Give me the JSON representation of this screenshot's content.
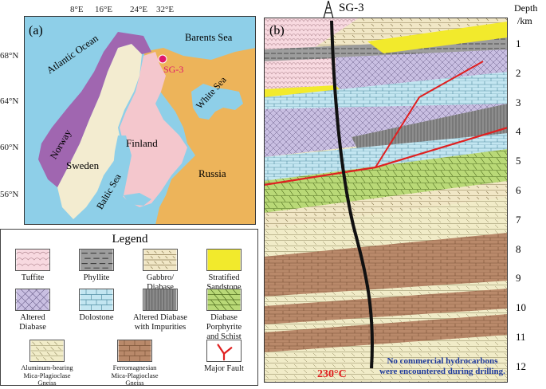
{
  "map": {
    "panel_label": "(a)",
    "lon_ticks": [
      "8°E",
      "16°E",
      "24°E",
      "32°E"
    ],
    "lat_ticks": [
      "68°N",
      "64°N",
      "60°N",
      "56°N"
    ],
    "labels": {
      "atlantic": "Atlantic Ocean",
      "barents": "Barents Sea",
      "white": "White Sea",
      "norway": "Norway",
      "sweden": "Sweden",
      "finland": "Finland",
      "baltic": "Baltic Sea",
      "russia": "Russia",
      "well": "SG-3"
    },
    "colors": {
      "ocean": "#8ecfe8",
      "norway": "#a066b0",
      "sweden": "#f3ecd0",
      "finland": "#f4c7cd",
      "russia": "#edb45a",
      "well": "#e0186c"
    }
  },
  "legend": {
    "title": "Legend",
    "items": [
      {
        "label": "Tuffite",
        "pattern": "tuffite"
      },
      {
        "label": "Phyllite",
        "pattern": "phyllite"
      },
      {
        "label": "Gabbro/\nDiabase",
        "pattern": "gabbro"
      },
      {
        "label": "Stratified\nSandstone",
        "pattern": "sandstone"
      },
      {
        "label": "Altered\nDiabase",
        "pattern": "altdiabase"
      },
      {
        "label": "Dolostone",
        "pattern": "dolostone"
      },
      {
        "label": "Altered Diabase\nwith Impurities",
        "pattern": "impure"
      },
      {
        "label": "Diabase\nPorphyrite\nand Schist",
        "pattern": "porphyrite"
      },
      {
        "label": "Aluminum-bearing\nMica-Plagioclase\nGneiss",
        "pattern": "alugneiss"
      },
      {
        "label": "Ferromagnesian\nMica-Plagioclase\nGneiss",
        "pattern": "ferrogneiss"
      },
      {
        "label": "Major Fault",
        "pattern": "fault"
      }
    ]
  },
  "section": {
    "panel_label": "(b)",
    "well_name": "SG-3",
    "depth_title_1": "Depth",
    "depth_title_2": "/km",
    "depth_ticks": [
      "1",
      "2",
      "3",
      "4",
      "5",
      "6",
      "7",
      "8",
      "9",
      "10",
      "11",
      "12"
    ],
    "temperature": "230°C",
    "note_line1": "No commercial hydrocarbons",
    "note_line2": "were encountered during drilling."
  }
}
